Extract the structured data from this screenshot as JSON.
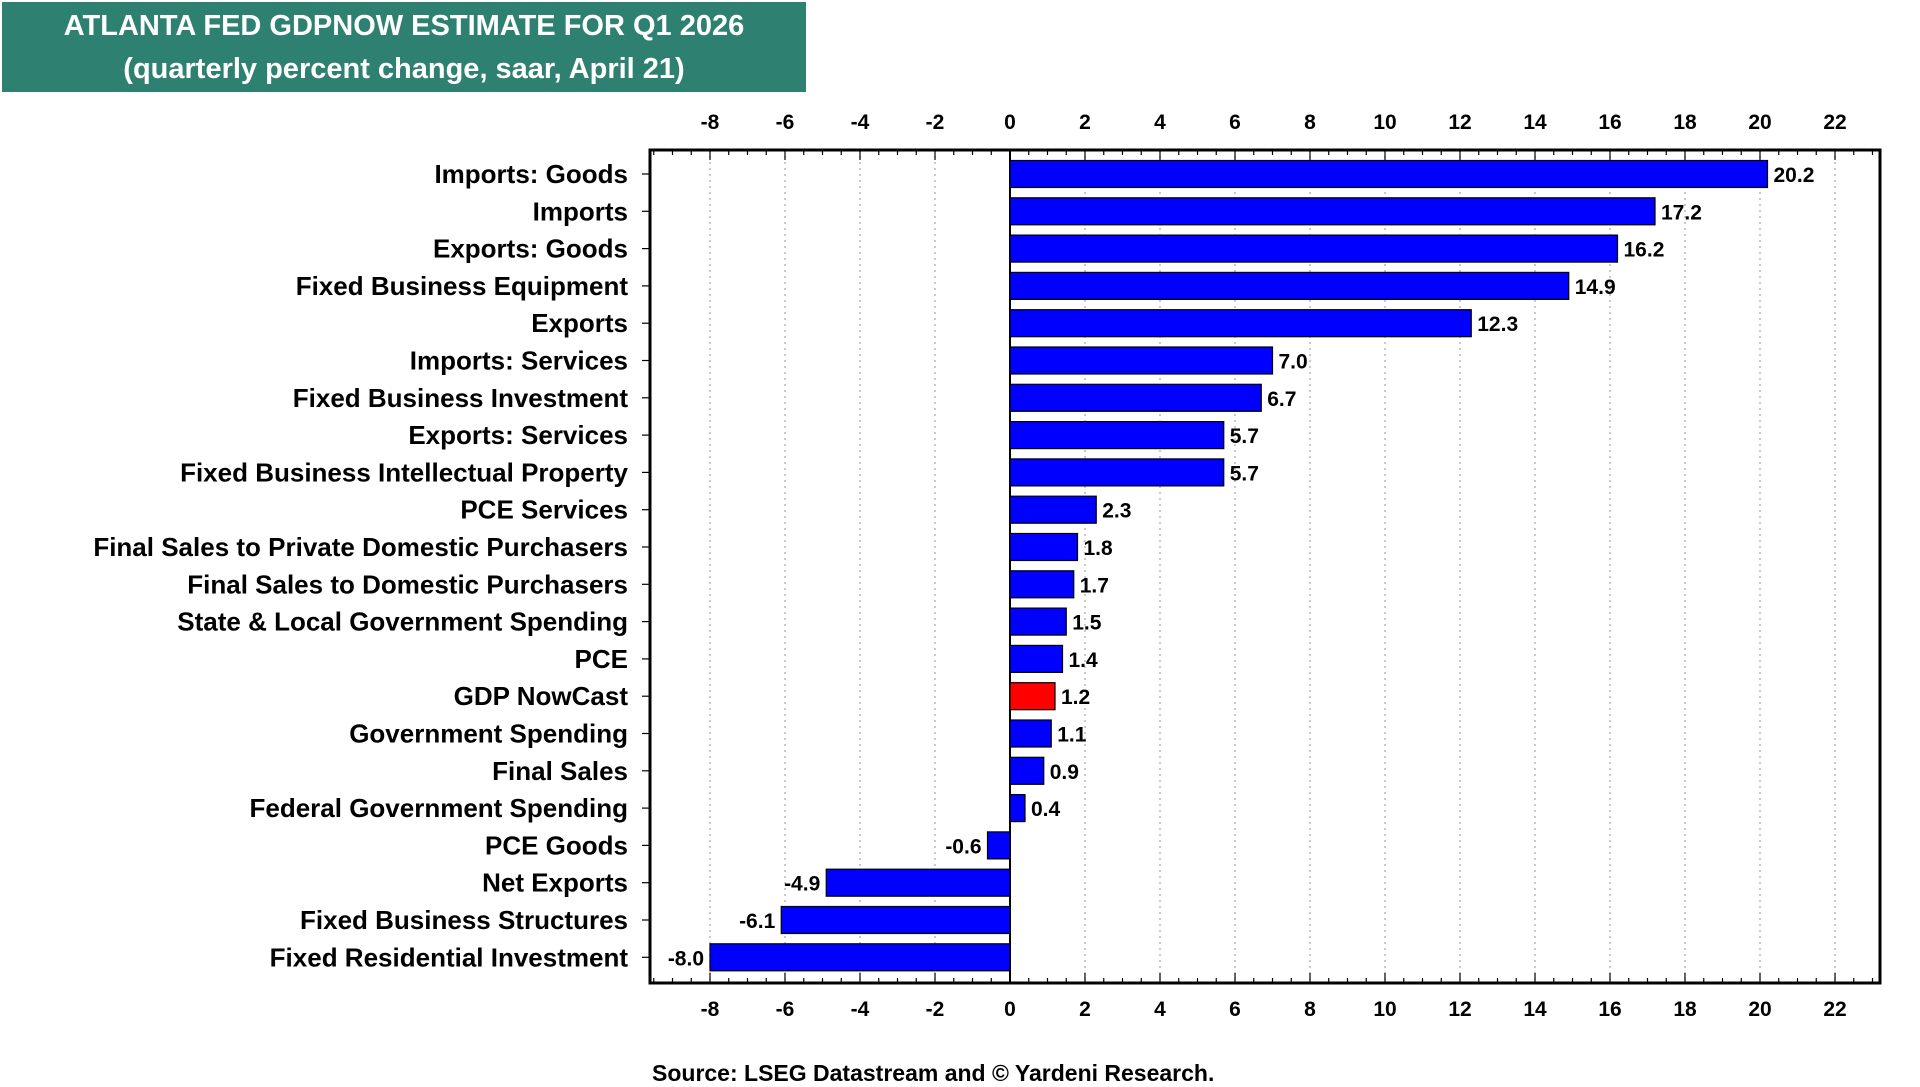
{
  "title": {
    "line1": "ATLANTA FED GDPNOW ESTIMATE FOR Q1 2026",
    "line2": "(quarterly percent change, saar, April 21)"
  },
  "source": "Source: LSEG Datastream and © Yardeni Research.",
  "colors": {
    "bar": "#0000ff",
    "highlight": "#ff0000",
    "title_bg": "#2e8070"
  },
  "chart_data": {
    "type": "bar",
    "orientation": "horizontal",
    "xlim": [
      -9.6,
      23.2
    ],
    "xticks": [
      "-8",
      "-6",
      "-4",
      "-2",
      "0",
      "2",
      "4",
      "6",
      "8",
      "10",
      "12",
      "14",
      "16",
      "18",
      "20",
      "22"
    ],
    "grid": "vertical dotted",
    "highlight_category": "GDP NowCast",
    "categories": [
      "Imports: Goods",
      "Imports",
      "Exports: Goods",
      "Fixed Business Equipment",
      "Exports",
      "Imports: Services",
      "Fixed Business Investment",
      "Exports: Services",
      "Fixed Business Intellectual Property",
      "PCE Services",
      "Final Sales to Private Domestic Purchasers",
      "Final Sales to Domestic Purchasers",
      "State & Local Government Spending",
      "PCE",
      "GDP NowCast",
      "Government Spending",
      "Final Sales",
      "Federal Government Spending",
      "PCE Goods",
      "Net Exports",
      "Fixed Business Structures",
      "Fixed Residential Investment"
    ],
    "values": [
      20.2,
      17.2,
      16.2,
      14.9,
      12.3,
      7.0,
      6.7,
      5.7,
      5.7,
      2.3,
      1.8,
      1.7,
      1.5,
      1.4,
      1.2,
      1.1,
      0.9,
      0.4,
      -0.6,
      -4.9,
      -6.1,
      -8.0
    ],
    "value_labels": [
      "20.2",
      "17.2",
      "16.2",
      "14.9",
      "12.3",
      "7.0",
      "6.7",
      "5.7",
      "5.7",
      "2.3",
      "1.8",
      "1.7",
      "1.5",
      "1.4",
      "1.2",
      "1.1",
      "0.9",
      "0.4",
      "-0.6",
      "-4.9",
      "-6.1",
      "-8.0"
    ]
  }
}
